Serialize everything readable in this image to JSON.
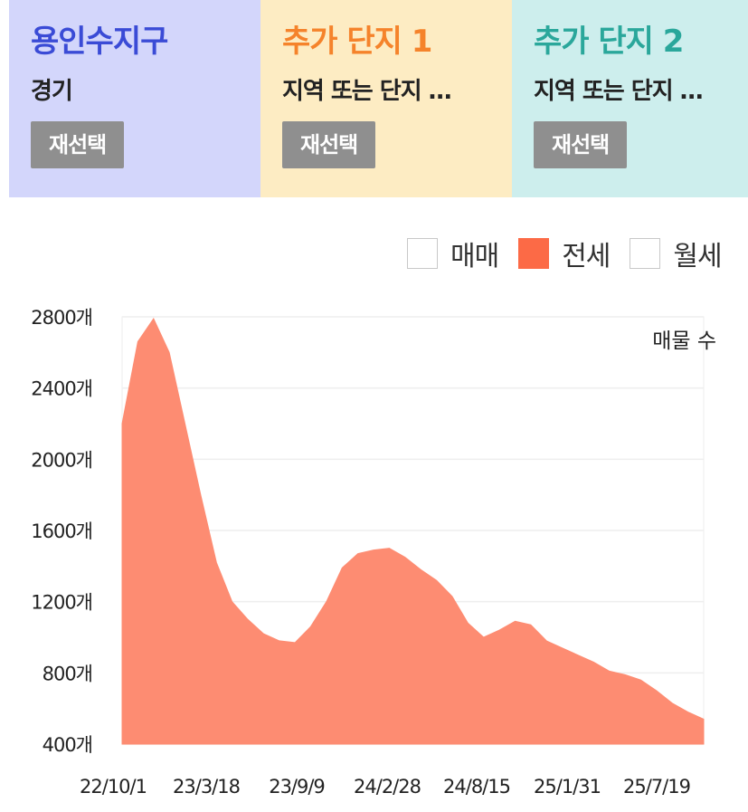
{
  "panels": [
    {
      "title": "용인수지구",
      "subtitle": "경기",
      "button": "재선택",
      "title_color": "#3a4bd6",
      "bg": "#d3d6fb",
      "button_bg": "#8f8f8f"
    },
    {
      "title": "추가 단지 1",
      "subtitle": "지역 또는 단지 …",
      "button": "재선택",
      "title_color": "#f5832b",
      "bg": "#fdecc3",
      "button_bg": "#8f8f8f"
    },
    {
      "title": "추가 단지 2",
      "subtitle": "지역 또는 단지 …",
      "button": "재선택",
      "title_color": "#2aa79b",
      "bg": "#cdeeed",
      "button_bg": "#8f8f8f"
    }
  ],
  "legend": [
    {
      "label": "매매",
      "checked": false,
      "color": "#ffffff"
    },
    {
      "label": "전세",
      "checked": true,
      "color": "#fc6a46"
    },
    {
      "label": "월세",
      "checked": false,
      "color": "#ffffff"
    }
  ],
  "chart_data": {
    "type": "area",
    "annotation": "매물 수",
    "series_color": "#fd8c72",
    "ylim": [
      400,
      2800
    ],
    "y_ticks": [
      "2800개",
      "2400개",
      "2000개",
      "1600개",
      "1200개",
      "800개",
      "400개"
    ],
    "x_ticks": [
      "22/10/1",
      "23/3/18",
      "23/9/9",
      "24/2/28",
      "24/8/15",
      "25/1/31",
      "25/7/19"
    ],
    "grid": true,
    "x": [
      "22/10/1",
      "22/11/1",
      "22/12/1",
      "23/1/1",
      "23/2/1",
      "23/3/1",
      "23/4/1",
      "23/5/1",
      "23/6/1",
      "23/7/1",
      "23/8/1",
      "23/9/1",
      "23/10/1",
      "23/11/1",
      "23/12/1",
      "24/1/1",
      "24/2/1",
      "24/3/1",
      "24/4/1",
      "24/5/1",
      "24/6/1",
      "24/7/1",
      "24/8/1",
      "24/9/1",
      "24/10/1",
      "24/11/1",
      "24/12/1",
      "25/1/1",
      "25/2/1",
      "25/3/1",
      "25/4/1",
      "25/5/1",
      "25/6/1",
      "25/7/1",
      "25/8/1",
      "25/9/1",
      "25/10/1",
      "25/11/1"
    ],
    "values": [
      2200,
      2660,
      2790,
      2600,
      2200,
      1800,
      1420,
      1200,
      1100,
      1020,
      980,
      970,
      1060,
      1200,
      1390,
      1470,
      1490,
      1500,
      1450,
      1380,
      1320,
      1230,
      1080,
      1000,
      1040,
      1090,
      1070,
      980,
      940,
      900,
      860,
      810,
      790,
      760,
      700,
      630,
      580,
      540
    ]
  }
}
